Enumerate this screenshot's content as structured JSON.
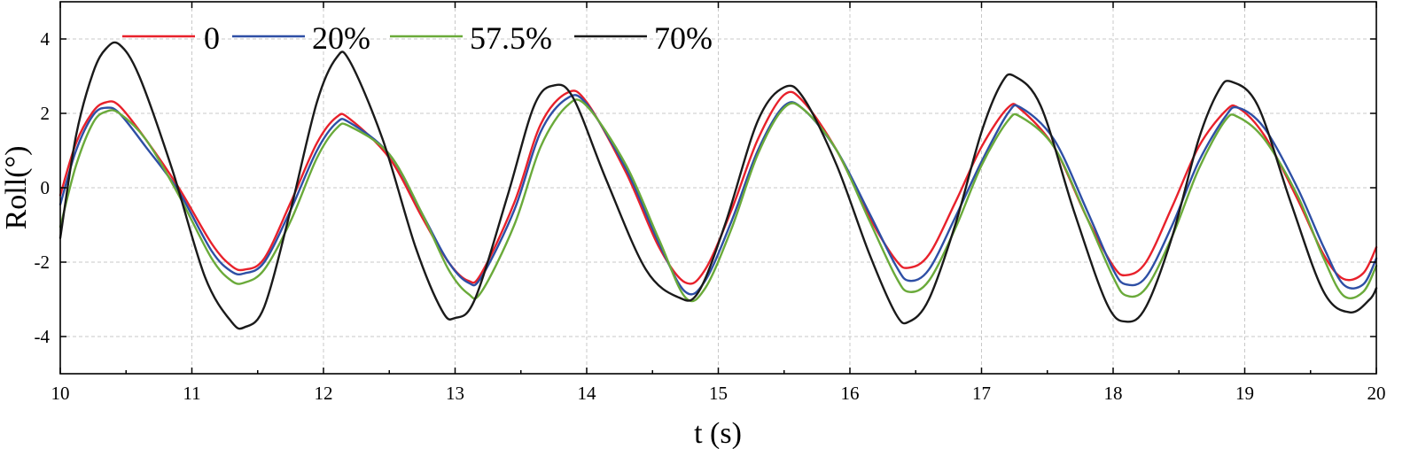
{
  "chart_data": {
    "type": "line",
    "title": "",
    "xlabel": "t (s)",
    "ylabel": "Roll(°)",
    "xlim": [
      10,
      20
    ],
    "ylim": [
      -5,
      5
    ],
    "xticks": [
      10,
      11,
      12,
      13,
      14,
      15,
      16,
      17,
      18,
      19,
      20
    ],
    "yticks": [
      4,
      2,
      0,
      -2,
      -4
    ],
    "ytick_labels": [
      "4",
      "2",
      "0",
      "-2",
      "-4"
    ],
    "grid": true,
    "legend_position": "top-left",
    "series": [
      {
        "name": "0",
        "color": "#e8212b",
        "points": [
          [
            10.0,
            -0.2
          ],
          [
            10.12,
            1.2
          ],
          [
            10.25,
            2.05
          ],
          [
            10.35,
            2.3
          ],
          [
            10.45,
            2.2
          ],
          [
            10.65,
            1.3
          ],
          [
            10.9,
            0.0
          ],
          [
            11.15,
            -1.5
          ],
          [
            11.3,
            -2.1
          ],
          [
            11.4,
            -2.2
          ],
          [
            11.55,
            -1.9
          ],
          [
            11.75,
            -0.4
          ],
          [
            11.95,
            1.2
          ],
          [
            12.1,
            1.9
          ],
          [
            12.2,
            1.85
          ],
          [
            12.5,
            0.8
          ],
          [
            12.75,
            -0.8
          ],
          [
            12.95,
            -2.0
          ],
          [
            13.1,
            -2.5
          ],
          [
            13.2,
            -2.3
          ],
          [
            13.45,
            -0.4
          ],
          [
            13.65,
            1.7
          ],
          [
            13.85,
            2.55
          ],
          [
            14.0,
            2.3
          ],
          [
            14.3,
            0.4
          ],
          [
            14.55,
            -1.6
          ],
          [
            14.75,
            -2.55
          ],
          [
            14.9,
            -2.2
          ],
          [
            15.1,
            -0.6
          ],
          [
            15.3,
            1.3
          ],
          [
            15.5,
            2.5
          ],
          [
            15.65,
            2.3
          ],
          [
            15.9,
            1.0
          ],
          [
            16.15,
            -0.8
          ],
          [
            16.35,
            -1.95
          ],
          [
            16.45,
            -2.15
          ],
          [
            16.6,
            -1.8
          ],
          [
            16.8,
            -0.4
          ],
          [
            17.0,
            1.1
          ],
          [
            17.2,
            2.15
          ],
          [
            17.3,
            2.1
          ],
          [
            17.55,
            1.1
          ],
          [
            17.8,
            -0.8
          ],
          [
            18.0,
            -2.1
          ],
          [
            18.1,
            -2.35
          ],
          [
            18.25,
            -2.0
          ],
          [
            18.45,
            -0.5
          ],
          [
            18.65,
            1.1
          ],
          [
            18.85,
            2.05
          ],
          [
            18.95,
            2.15
          ],
          [
            19.15,
            1.4
          ],
          [
            19.4,
            -0.3
          ],
          [
            19.6,
            -1.8
          ],
          [
            19.75,
            -2.45
          ],
          [
            19.9,
            -2.3
          ],
          [
            20.0,
            -1.6
          ]
        ]
      },
      {
        "name": "20%",
        "color": "#2e4fa5",
        "points": [
          [
            10.0,
            -0.45
          ],
          [
            10.12,
            1.0
          ],
          [
            10.25,
            1.95
          ],
          [
            10.35,
            2.15
          ],
          [
            10.45,
            2.0
          ],
          [
            10.65,
            1.1
          ],
          [
            10.9,
            -0.1
          ],
          [
            11.15,
            -1.7
          ],
          [
            11.3,
            -2.25
          ],
          [
            11.4,
            -2.3
          ],
          [
            11.55,
            -2.0
          ],
          [
            11.75,
            -0.6
          ],
          [
            11.95,
            1.0
          ],
          [
            12.1,
            1.75
          ],
          [
            12.2,
            1.75
          ],
          [
            12.5,
            0.9
          ],
          [
            12.75,
            -0.7
          ],
          [
            12.95,
            -2.0
          ],
          [
            13.1,
            -2.55
          ],
          [
            13.2,
            -2.4
          ],
          [
            13.45,
            -0.6
          ],
          [
            13.65,
            1.5
          ],
          [
            13.85,
            2.4
          ],
          [
            14.0,
            2.25
          ],
          [
            14.3,
            0.5
          ],
          [
            14.55,
            -1.5
          ],
          [
            14.75,
            -2.8
          ],
          [
            14.9,
            -2.5
          ],
          [
            15.1,
            -0.9
          ],
          [
            15.3,
            1.0
          ],
          [
            15.5,
            2.2
          ],
          [
            15.65,
            2.1
          ],
          [
            15.9,
            1.0
          ],
          [
            16.15,
            -0.7
          ],
          [
            16.35,
            -2.1
          ],
          [
            16.45,
            -2.5
          ],
          [
            16.6,
            -2.2
          ],
          [
            16.8,
            -0.8
          ],
          [
            17.0,
            0.7
          ],
          [
            17.2,
            2.0
          ],
          [
            17.3,
            2.15
          ],
          [
            17.55,
            1.3
          ],
          [
            17.8,
            -0.6
          ],
          [
            18.0,
            -2.2
          ],
          [
            18.1,
            -2.6
          ],
          [
            18.25,
            -2.4
          ],
          [
            18.45,
            -1.0
          ],
          [
            18.65,
            0.7
          ],
          [
            18.85,
            1.9
          ],
          [
            18.95,
            2.15
          ],
          [
            19.15,
            1.6
          ],
          [
            19.4,
            0.0
          ],
          [
            19.6,
            -1.6
          ],
          [
            19.75,
            -2.6
          ],
          [
            19.9,
            -2.6
          ],
          [
            20.0,
            -1.9
          ]
        ]
      },
      {
        "name": "57.5%",
        "color": "#6aaa3a",
        "points": [
          [
            10.0,
            -1.05
          ],
          [
            10.12,
            0.6
          ],
          [
            10.25,
            1.75
          ],
          [
            10.35,
            2.05
          ],
          [
            10.45,
            2.0
          ],
          [
            10.65,
            1.3
          ],
          [
            10.9,
            -0.2
          ],
          [
            11.15,
            -1.9
          ],
          [
            11.3,
            -2.5
          ],
          [
            11.4,
            -2.55
          ],
          [
            11.55,
            -2.2
          ],
          [
            11.75,
            -0.9
          ],
          [
            11.95,
            0.8
          ],
          [
            12.1,
            1.6
          ],
          [
            12.2,
            1.65
          ],
          [
            12.5,
            0.9
          ],
          [
            12.75,
            -0.7
          ],
          [
            12.95,
            -2.2
          ],
          [
            13.1,
            -2.85
          ],
          [
            13.2,
            -2.8
          ],
          [
            13.45,
            -1.0
          ],
          [
            13.65,
            1.1
          ],
          [
            13.85,
            2.2
          ],
          [
            14.0,
            2.2
          ],
          [
            14.3,
            0.6
          ],
          [
            14.55,
            -1.4
          ],
          [
            14.75,
            -2.95
          ],
          [
            14.9,
            -2.7
          ],
          [
            15.1,
            -1.1
          ],
          [
            15.3,
            0.9
          ],
          [
            15.5,
            2.15
          ],
          [
            15.65,
            2.1
          ],
          [
            15.9,
            1.0
          ],
          [
            16.15,
            -0.9
          ],
          [
            16.35,
            -2.4
          ],
          [
            16.45,
            -2.8
          ],
          [
            16.6,
            -2.5
          ],
          [
            16.8,
            -1.1
          ],
          [
            17.0,
            0.6
          ],
          [
            17.2,
            1.8
          ],
          [
            17.3,
            1.9
          ],
          [
            17.55,
            1.1
          ],
          [
            17.8,
            -0.8
          ],
          [
            18.0,
            -2.4
          ],
          [
            18.1,
            -2.9
          ],
          [
            18.25,
            -2.7
          ],
          [
            18.45,
            -1.3
          ],
          [
            18.65,
            0.5
          ],
          [
            18.85,
            1.8
          ],
          [
            18.95,
            1.9
          ],
          [
            19.15,
            1.3
          ],
          [
            19.4,
            -0.2
          ],
          [
            19.6,
            -1.9
          ],
          [
            19.75,
            -2.9
          ],
          [
            19.9,
            -2.8
          ],
          [
            20.0,
            -2.1
          ]
        ]
      },
      {
        "name": "70%",
        "color": "#1a1a1a",
        "points": [
          [
            10.0,
            -1.35
          ],
          [
            10.12,
            1.4
          ],
          [
            10.25,
            3.1
          ],
          [
            10.35,
            3.75
          ],
          [
            10.45,
            3.85
          ],
          [
            10.6,
            3.0
          ],
          [
            10.85,
            0.5
          ],
          [
            11.1,
            -2.4
          ],
          [
            11.3,
            -3.6
          ],
          [
            11.4,
            -3.75
          ],
          [
            11.55,
            -3.2
          ],
          [
            11.75,
            -0.6
          ],
          [
            11.95,
            2.3
          ],
          [
            12.1,
            3.5
          ],
          [
            12.2,
            3.4
          ],
          [
            12.45,
            1.3
          ],
          [
            12.7,
            -1.6
          ],
          [
            12.9,
            -3.3
          ],
          [
            13.0,
            -3.5
          ],
          [
            13.15,
            -3.0
          ],
          [
            13.4,
            -0.2
          ],
          [
            13.6,
            2.2
          ],
          [
            13.75,
            2.75
          ],
          [
            13.9,
            2.4
          ],
          [
            14.15,
            0.2
          ],
          [
            14.45,
            -2.2
          ],
          [
            14.7,
            -2.95
          ],
          [
            14.85,
            -2.8
          ],
          [
            15.05,
            -1.0
          ],
          [
            15.3,
            1.8
          ],
          [
            15.5,
            2.7
          ],
          [
            15.65,
            2.4
          ],
          [
            15.9,
            0.6
          ],
          [
            16.15,
            -1.8
          ],
          [
            16.35,
            -3.4
          ],
          [
            16.45,
            -3.6
          ],
          [
            16.6,
            -3.0
          ],
          [
            16.8,
            -1.0
          ],
          [
            17.0,
            1.5
          ],
          [
            17.15,
            2.8
          ],
          [
            17.25,
            3.0
          ],
          [
            17.45,
            2.2
          ],
          [
            17.7,
            -0.6
          ],
          [
            17.95,
            -3.1
          ],
          [
            18.1,
            -3.6
          ],
          [
            18.25,
            -3.2
          ],
          [
            18.45,
            -1.3
          ],
          [
            18.65,
            1.3
          ],
          [
            18.8,
            2.6
          ],
          [
            18.9,
            2.85
          ],
          [
            19.1,
            2.2
          ],
          [
            19.35,
            -0.4
          ],
          [
            19.6,
            -2.8
          ],
          [
            19.8,
            -3.35
          ],
          [
            19.95,
            -3.0
          ],
          [
            20.0,
            -2.7
          ]
        ]
      }
    ]
  }
}
